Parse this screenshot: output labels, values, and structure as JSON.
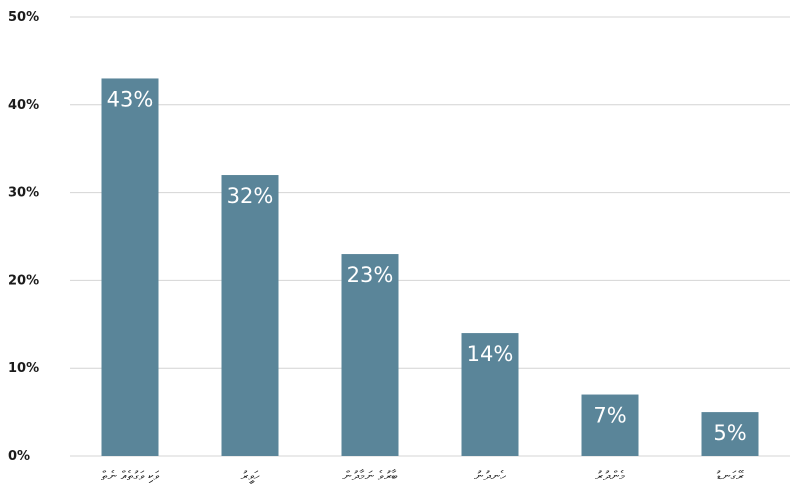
{
  "chart_data": {
    "type": "bar",
    "title": "",
    "xlabel": "",
    "ylabel": "",
    "categories": [
      "ވަކި ވަގުތެއް ނެތް",
      "ހަވީރު",
      "ބާރުވެ ނަމާދުން",
      "ހެނދުނު",
      "މެންދުރު",
      "ރޭގަނޑު"
    ],
    "values": [
      43,
      32,
      23,
      14,
      7,
      5
    ],
    "value_labels": [
      "43%",
      "32%",
      "23%",
      "14%",
      "7%",
      "5%"
    ],
    "yticks": [
      0,
      10,
      20,
      30,
      40,
      50
    ],
    "ytick_labels": [
      "0%",
      "10%",
      "20%",
      "30%",
      "40%",
      "50%"
    ],
    "ylim": [
      0,
      50
    ],
    "grid": true,
    "legend": "none",
    "bar_color": "#5a8599",
    "data_label_color": "#ffffff"
  }
}
